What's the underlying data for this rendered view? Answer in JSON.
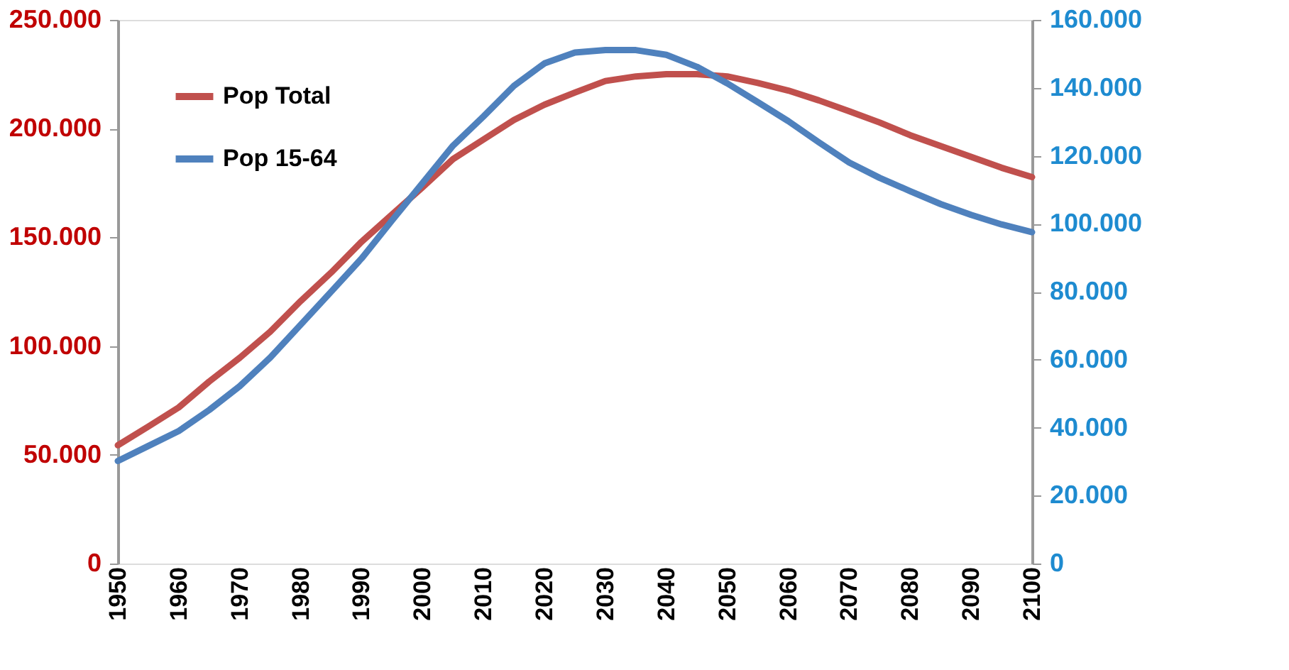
{
  "chart_data": {
    "type": "line",
    "x": [
      1950,
      1955,
      1960,
      1965,
      1970,
      1975,
      1980,
      1985,
      1990,
      1995,
      2000,
      2005,
      2010,
      2015,
      2020,
      2025,
      2030,
      2035,
      2040,
      2045,
      2050,
      2055,
      2060,
      2065,
      2070,
      2075,
      2080,
      2085,
      2090,
      2095,
      2100
    ],
    "series": [
      {
        "name": "Pop Total",
        "color": "#c0504d",
        "values": [
          54400,
          63000,
          71800,
          83700,
          94600,
          106600,
          120700,
          133800,
          148000,
          160500,
          173000,
          186000,
          195000,
          204000,
          211000,
          216600,
          221900,
          224000,
          225000,
          225000,
          224000,
          221000,
          217500,
          213000,
          208000,
          202800,
          197000,
          192000,
          187000,
          182000,
          177700
        ]
      },
      {
        "name": "Pop 15-64",
        "color": "#4f81bd",
        "axis": "y2",
        "values": [
          30200,
          34600,
          39000,
          45200,
          52200,
          60600,
          70300,
          80000,
          89800,
          101000,
          112000,
          123000,
          131600,
          140600,
          147200,
          150400,
          151100,
          151100,
          149700,
          146200,
          141300,
          135800,
          130200,
          124000,
          118000,
          113500,
          109600,
          105800,
          102600,
          99800,
          97500
        ]
      }
    ],
    "xlim": [
      1950,
      2100
    ],
    "xticks": [
      1950,
      1960,
      1970,
      1980,
      1990,
      2000,
      2010,
      2020,
      2030,
      2040,
      2050,
      2060,
      2070,
      2080,
      2090,
      2100
    ],
    "ylim": [
      0,
      250000
    ],
    "yticks": [
      0,
      {
        "value": 50000,
        "label": "50.000"
      },
      {
        "value": 100000,
        "label": "100.000"
      },
      {
        "value": 150000,
        "label": "150.000"
      },
      {
        "value": 200000,
        "label": "200.000"
      },
      {
        "value": 250000,
        "label": "250.000"
      }
    ],
    "y2lim": [
      0,
      160000
    ],
    "y2ticks": [
      0,
      {
        "value": 20000,
        "label": "20.000"
      },
      {
        "value": 40000,
        "label": "40.000"
      },
      {
        "value": 60000,
        "label": "60.000"
      },
      {
        "value": 80000,
        "label": "80.000"
      },
      {
        "value": 100000,
        "label": "100.000"
      },
      {
        "value": 120000,
        "label": "120.000"
      },
      {
        "value": 140000,
        "label": "140.000"
      },
      {
        "value": 160000,
        "label": "160.000"
      }
    ],
    "legend": "top left",
    "grid": false,
    "marker": "none",
    "line_style": "solid"
  }
}
